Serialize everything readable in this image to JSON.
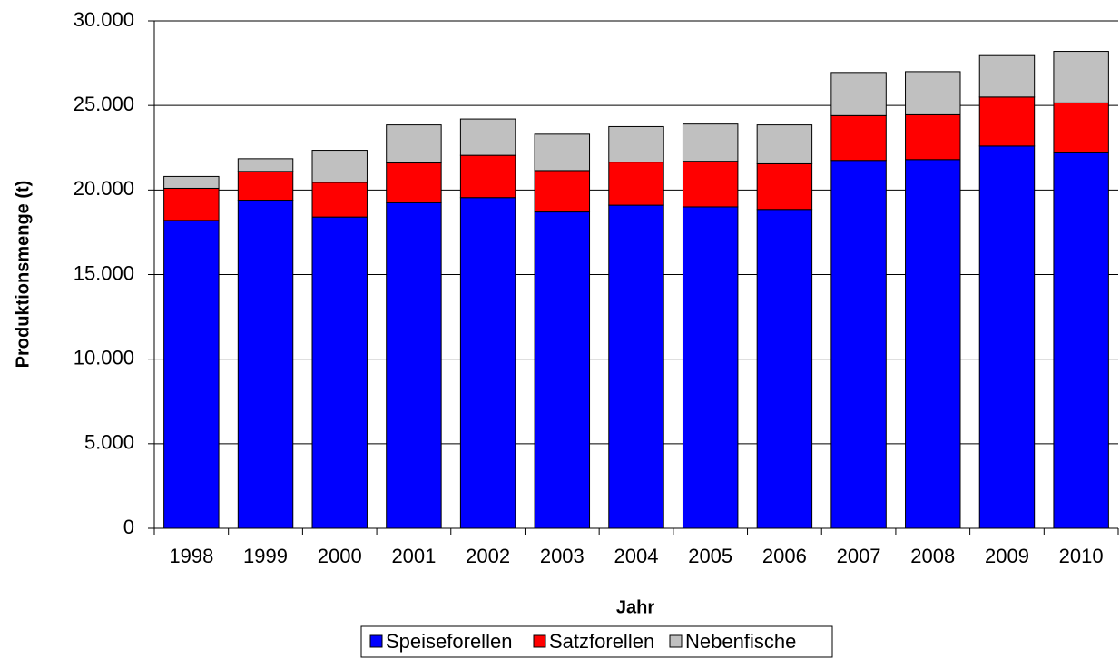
{
  "chart_data": {
    "type": "stacked_bar",
    "x_label": "Jahr",
    "y_label": "Produktionsmenge  (t)",
    "categories": [
      "1998",
      "1999",
      "2000",
      "2001",
      "2002",
      "2003",
      "2004",
      "2005",
      "2006",
      "2007",
      "2008",
      "2009",
      "2010"
    ],
    "series": [
      {
        "name": "Speiseforellen",
        "color": "#0000ff",
        "values": [
          18200,
          19400,
          18400,
          19250,
          19550,
          18700,
          19100,
          19000,
          18850,
          21750,
          21800,
          22600,
          22200
        ]
      },
      {
        "name": "Satzforellen",
        "color": "#ff0000",
        "values": [
          1900,
          1700,
          2050,
          2350,
          2500,
          2450,
          2550,
          2700,
          2700,
          2650,
          2650,
          2900,
          2950
        ]
      },
      {
        "name": "Nebenfische",
        "color": "#c0c0c0",
        "values": [
          700,
          750,
          1900,
          2250,
          2150,
          2150,
          2100,
          2200,
          2300,
          2550,
          2550,
          2450,
          3050
        ]
      }
    ],
    "ylim": [
      0,
      30000
    ],
    "yticks": [
      0,
      {
        "value": 5000,
        "label": "5.000"
      },
      {
        "value": 10000,
        "label": "10.000"
      },
      {
        "value": 15000,
        "label": "15.000"
      },
      {
        "value": 20000,
        "label": "20.000"
      },
      {
        "value": 25000,
        "label": "25.000"
      },
      {
        "value": 30000,
        "label": "30.000"
      }
    ],
    "grid": true,
    "legend_position": "bottom"
  }
}
